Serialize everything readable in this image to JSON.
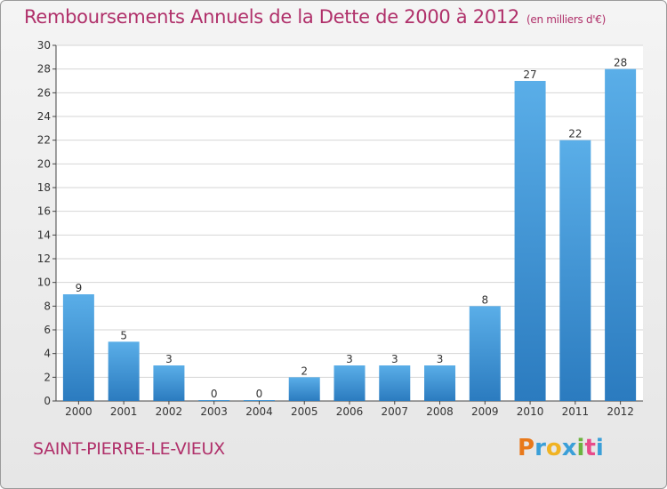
{
  "header": {
    "title": "Remboursements Annuels de la Dette de 2000 à 2012",
    "unit": "(en milliers d'€)"
  },
  "footer": {
    "commune": "SAINT-PIERRE-LE-VIEUX",
    "logo": "Proxiti"
  },
  "colors": {
    "accent": "#b0306a",
    "bar_top": "#5aaee8",
    "bar_bottom": "#2b7bbf"
  },
  "chart_data": {
    "type": "bar",
    "title": "Remboursements Annuels de la Dette de 2000 à 2012",
    "xlabel": "",
    "ylabel": "",
    "categories": [
      "2000",
      "2001",
      "2002",
      "2003",
      "2004",
      "2005",
      "2006",
      "2007",
      "2008",
      "2009",
      "2010",
      "2011",
      "2012"
    ],
    "values": [
      9,
      5,
      3,
      0,
      0,
      2,
      3,
      3,
      3,
      8,
      27,
      22,
      28
    ],
    "ylim": [
      0,
      30
    ],
    "yticks": [
      0,
      2,
      4,
      6,
      8,
      10,
      12,
      14,
      16,
      18,
      20,
      22,
      24,
      26,
      28,
      30
    ],
    "grid": true,
    "legend": "none"
  }
}
